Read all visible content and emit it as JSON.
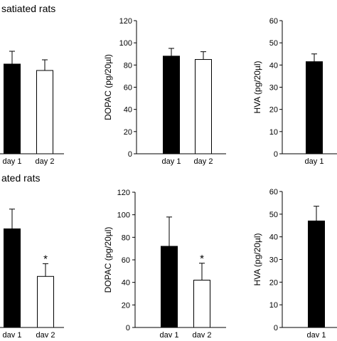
{
  "section_titles": {
    "top": "satiated rats",
    "bottom": "ated rats"
  },
  "chart_data": [
    {
      "type": "bar",
      "panel": "top-left",
      "categories": [
        "day 1",
        "day 2"
      ],
      "values": [
        84,
        78
      ],
      "errors": [
        12,
        10
      ],
      "fills": [
        "#000000",
        "#ffffff"
      ],
      "significance": [
        "",
        ""
      ],
      "ylabel": "",
      "ylim": [
        0,
        100
      ],
      "yticks": [],
      "yticks_labels": []
    },
    {
      "type": "bar",
      "panel": "top-middle",
      "categories": [
        "day 1",
        "day 2"
      ],
      "values": [
        88,
        85
      ],
      "errors": [
        7,
        7
      ],
      "fills": [
        "#000000",
        "#ffffff"
      ],
      "significance": [
        "",
        ""
      ],
      "ylabel": "DOPAC (pg/20µl)",
      "ylim": [
        0,
        120
      ],
      "yticks": [
        0,
        20,
        40,
        60,
        80,
        100,
        120
      ],
      "yticks_labels": [
        "0",
        "20",
        "40",
        "60",
        "80",
        "100",
        "120"
      ]
    },
    {
      "type": "bar",
      "panel": "top-right",
      "categories": [
        "day 1"
      ],
      "values": [
        41.5
      ],
      "errors": [
        3.5
      ],
      "fills": [
        "#000000"
      ],
      "significance": [
        ""
      ],
      "ylabel": "HVA (pg/20µl)",
      "ylim": [
        0,
        60
      ],
      "yticks": [
        0,
        10,
        20,
        30,
        40,
        50,
        60
      ],
      "yticks_labels": [
        "0",
        "10",
        "20",
        "30",
        "40",
        "50",
        "60"
      ]
    },
    {
      "type": "bar",
      "panel": "bottom-left",
      "categories": [
        "day 1",
        "day 2"
      ],
      "values": [
        85,
        44
      ],
      "errors": [
        17,
        11
      ],
      "fills": [
        "#000000",
        "#ffffff"
      ],
      "significance": [
        "",
        "*"
      ],
      "ylabel": "",
      "ylim": [
        0,
        100
      ],
      "yticks": [],
      "yticks_labels": []
    },
    {
      "type": "bar",
      "panel": "bottom-middle",
      "categories": [
        "day 1",
        "day 2"
      ],
      "values": [
        72,
        42
      ],
      "errors": [
        26,
        15
      ],
      "fills": [
        "#000000",
        "#ffffff"
      ],
      "significance": [
        "",
        "*"
      ],
      "ylabel": "DOPAC (pg/20µl)",
      "ylim": [
        0,
        120
      ],
      "yticks": [
        0,
        20,
        40,
        60,
        80,
        100,
        120
      ],
      "yticks_labels": [
        "0",
        "20",
        "40",
        "60",
        "80",
        "100",
        "120"
      ]
    },
    {
      "type": "bar",
      "panel": "bottom-right",
      "categories": [
        "day 1"
      ],
      "values": [
        47
      ],
      "errors": [
        6.5
      ],
      "fills": [
        "#000000"
      ],
      "significance": [
        ""
      ],
      "ylabel": "HVA (pg/20µl)",
      "ylim": [
        0,
        60
      ],
      "yticks": [
        0,
        10,
        20,
        30,
        40,
        50,
        60
      ],
      "yticks_labels": [
        "0",
        "10",
        "20",
        "30",
        "40",
        "50",
        "60"
      ]
    }
  ]
}
